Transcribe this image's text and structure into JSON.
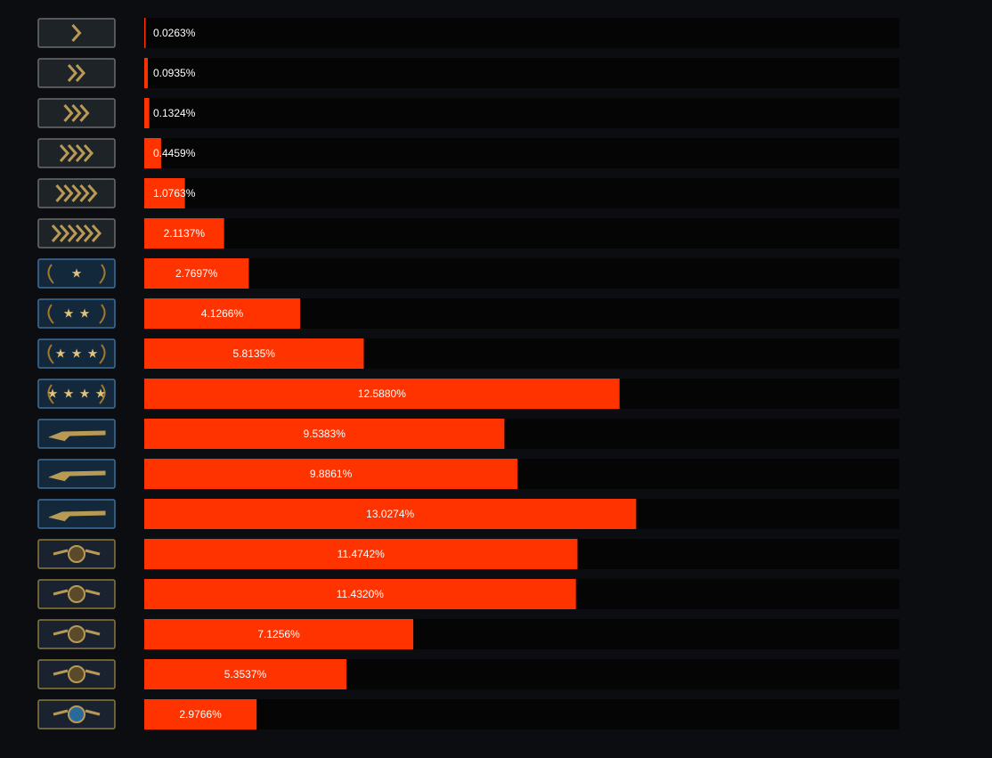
{
  "chart_data": {
    "type": "bar",
    "orientation": "horizontal",
    "color": "#ff3300",
    "values": [
      0.0263,
      0.0935,
      0.1324,
      0.4459,
      1.0763,
      2.1137,
      2.7697,
      4.1266,
      5.8135,
      12.588,
      9.5383,
      9.8861,
      13.0274,
      11.4742,
      11.432,
      7.1256,
      5.3537,
      2.9766
    ],
    "value_labels": [
      "0.0263%",
      "0.0935%",
      "0.1324%",
      "0.4459%",
      "1.0763%",
      "2.1137%",
      "2.7697%",
      "4.1266%",
      "5.8135%",
      "12.5880%",
      "9.5383%",
      "9.8861%",
      "13.0274%",
      "11.4742%",
      "11.4320%",
      "7.1256%",
      "5.3537%",
      "2.9766%"
    ],
    "xlim": [
      0,
      20
    ]
  }
}
